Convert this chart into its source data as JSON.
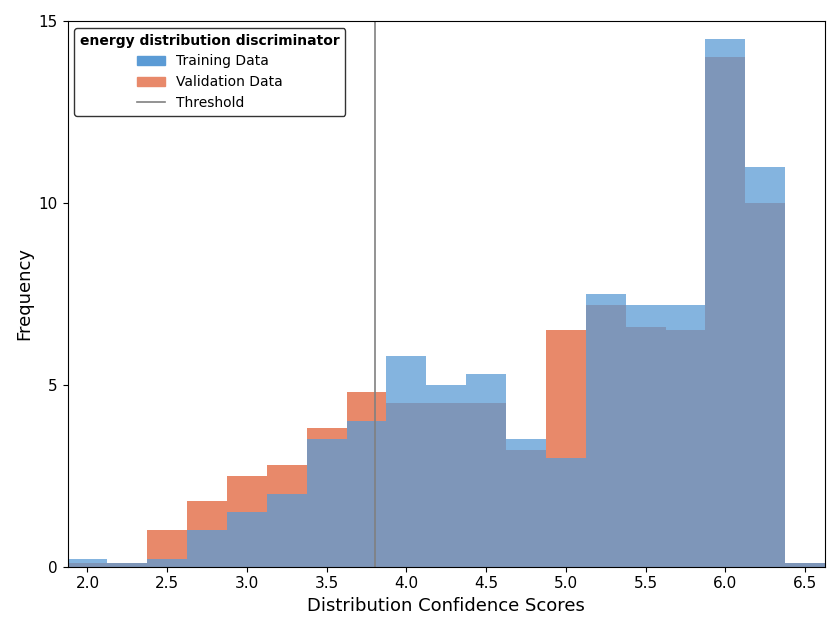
{
  "title": "energy distribution discriminator",
  "xlabel": "Distribution Confidence Scores",
  "ylabel": "Frequency",
  "xlim": [
    1.875,
    6.625
  ],
  "ylim": [
    0,
    15
  ],
  "yticks": [
    0,
    5,
    10,
    15
  ],
  "xticks": [
    2,
    2.5,
    3,
    3.5,
    4,
    4.5,
    5,
    5.5,
    6,
    6.5
  ],
  "threshold": 3.8,
  "bin_width": 0.25,
  "bin_centers": [
    2.0,
    2.25,
    2.5,
    2.75,
    3.0,
    3.25,
    3.5,
    3.75,
    4.0,
    4.25,
    4.5,
    4.75,
    5.0,
    5.25,
    5.5,
    5.75,
    6.0,
    6.25,
    6.5
  ],
  "train_counts": [
    0.2,
    0.1,
    0.2,
    1.0,
    1.5,
    2.0,
    3.5,
    4.0,
    5.8,
    5.0,
    5.3,
    3.5,
    3.0,
    7.5,
    7.2,
    7.2,
    14.5,
    11.0,
    0.1
  ],
  "val_counts": [
    0.1,
    0.1,
    1.0,
    1.8,
    2.5,
    2.8,
    3.8,
    4.8,
    4.5,
    4.5,
    4.5,
    3.2,
    6.5,
    7.2,
    6.6,
    6.5,
    14.0,
    10.0,
    0.1
  ],
  "train_color": "#5B9BD5",
  "val_color": "#E8896A",
  "threshold_color": "#808080",
  "legend_title": "energy distribution discriminator"
}
